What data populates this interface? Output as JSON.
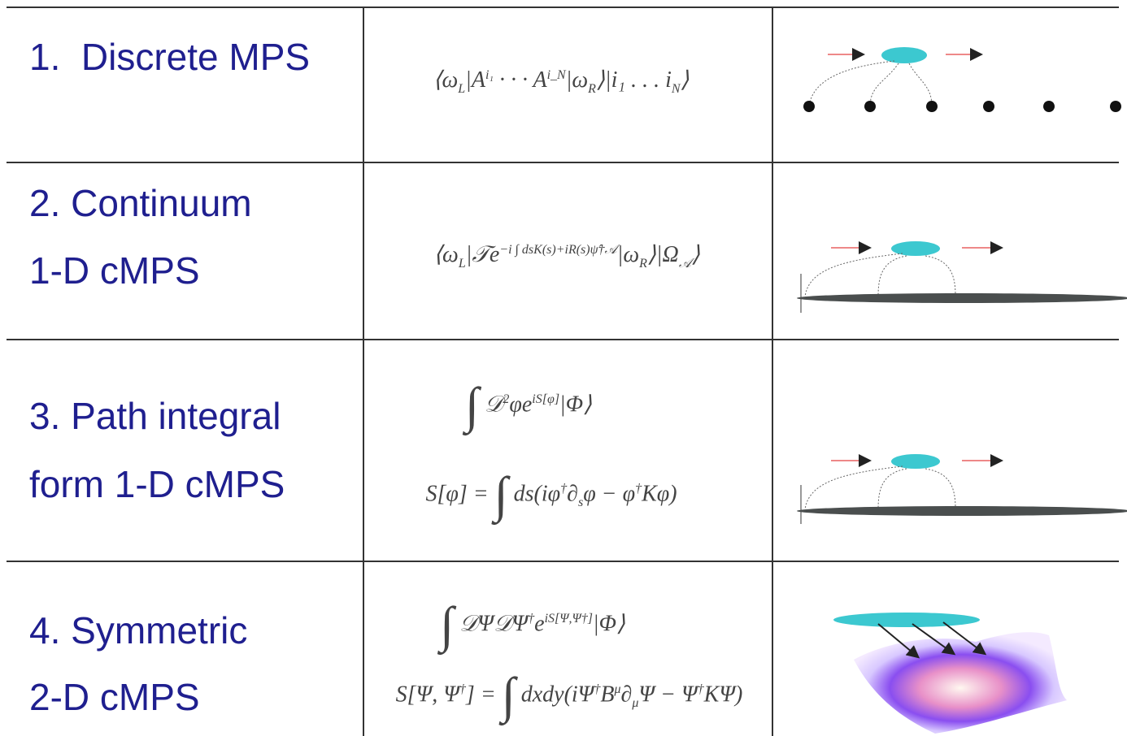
{
  "table": {
    "rows": [
      {
        "label": [
          "1.  Discrete MPS"
        ],
        "formula": [
          [
            "⟨ω",
            {
              "sub": "L"
            },
            "|A",
            {
              "sup": "i₁"
            },
            " · · · A",
            {
              "sup": "i_N"
            },
            "|ω",
            {
              "sub": "R"
            },
            "⟩|i₁ . . . i",
            {
              "sub": "N"
            },
            "⟩"
          ]
        ]
      },
      {
        "label": [
          "2. Continuum",
          "1-D cMPS"
        ],
        "formula": [
          [
            "⟨ω",
            {
              "sub": "L"
            },
            "|𝒯e",
            {
              "sup": "−i ∫ dsK(s)+iR(s)ψ̂†𝒜"
            },
            "|ω",
            {
              "sub": "R"
            },
            "⟩|Ω",
            {
              "sub": "𝒜"
            },
            "⟩"
          ]
        ]
      },
      {
        "label": [
          "3. Path integral",
          "form 1-D cMPS"
        ],
        "formula": [
          [
            {
              "big": "∫"
            },
            " 𝒟",
            {
              "sup": "2"
            },
            "φe",
            {
              "sup": "iS[φ]"
            },
            "|Φ⟩"
          ],
          [
            "S[φ] = ",
            {
              "big": "∫"
            },
            " ds(iφ",
            {
              "sup": "†"
            },
            "∂",
            {
              "sub": "s"
            },
            "φ − φ",
            {
              "sup": "†"
            },
            "Kφ)"
          ]
        ]
      },
      {
        "label": [
          "4. Symmetric",
          "2-D cMPS"
        ],
        "formula": [
          [
            {
              "big": "∫"
            },
            " 𝒟Ψ𝒟Ψ",
            {
              "sup": "†"
            },
            "e",
            {
              "sup": "iS[Ψ,Ψ†]"
            },
            "|Φ⟩"
          ],
          [
            "S[Ψ, Ψ",
            {
              "sup": "†"
            },
            "] = ",
            {
              "big": "∫"
            },
            " dxdy(iΨ",
            {
              "sup": "†"
            },
            "B",
            {
              "sup": "μ"
            },
            "∂",
            {
              "sub": "μ"
            },
            "Ψ − Ψ",
            {
              "sup": "†"
            },
            "KΨ)"
          ]
        ]
      }
    ]
  }
}
